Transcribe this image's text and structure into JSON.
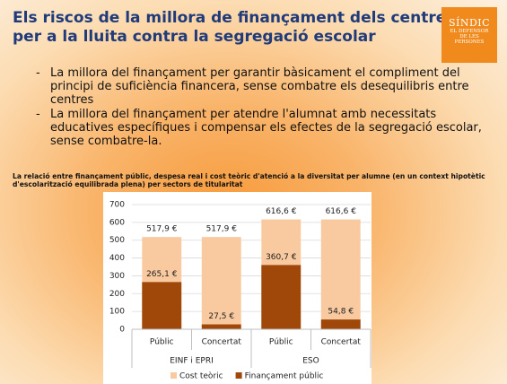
{
  "slide": {
    "title": [
      "Els riscos de la millora de finançament dels centres",
      "per a la lluita contra la segregació escolar"
    ],
    "logo": [
      "SÍNDIC",
      "EL DEFENSOR",
      "DE LES",
      "PERSONES"
    ],
    "bullets": [
      "La millora del finançament per garantir bàsicament el compliment del principi de suficiència financera, sense combatre els desequilibris entre centres",
      "La millora del finançament per atendre l'alumnat amb necessitats educatives específiques i compensar els efectes de la segregació escolar, sense combatre-la."
    ]
  },
  "chart_data": {
    "type": "bar",
    "title": "La relació entre finançament públic, despesa real i cost teòric d'atenció a la diversitat per alumne (en un context hipotètic d'escolarització equilibrada plena) per sectors de titularitat",
    "categories": [
      "Públic",
      "Concertat",
      "Públic",
      "Concertat"
    ],
    "groups": [
      "EINF i EPRI",
      "ESO"
    ],
    "series": [
      {
        "name": "Cost teòric",
        "color": "#f9c9a0",
        "values": [
          517.9,
          517.9,
          616.6,
          616.6
        ],
        "value_labels": [
          "517,9 €",
          "517,9 €",
          "616,6 €",
          "616,6 €"
        ]
      },
      {
        "name": "Finançament públic",
        "color": "#a0480a",
        "values": [
          265.1,
          27.5,
          360.7,
          54.8
        ],
        "value_labels": [
          "265,1 €",
          "27,5 €",
          "360,7 €",
          "54,8 €"
        ]
      }
    ],
    "ylim": [
      0,
      700
    ],
    "yticks": [
      0,
      100,
      200,
      300,
      400,
      500,
      600,
      700
    ],
    "grid": true,
    "legend": "bottom"
  }
}
